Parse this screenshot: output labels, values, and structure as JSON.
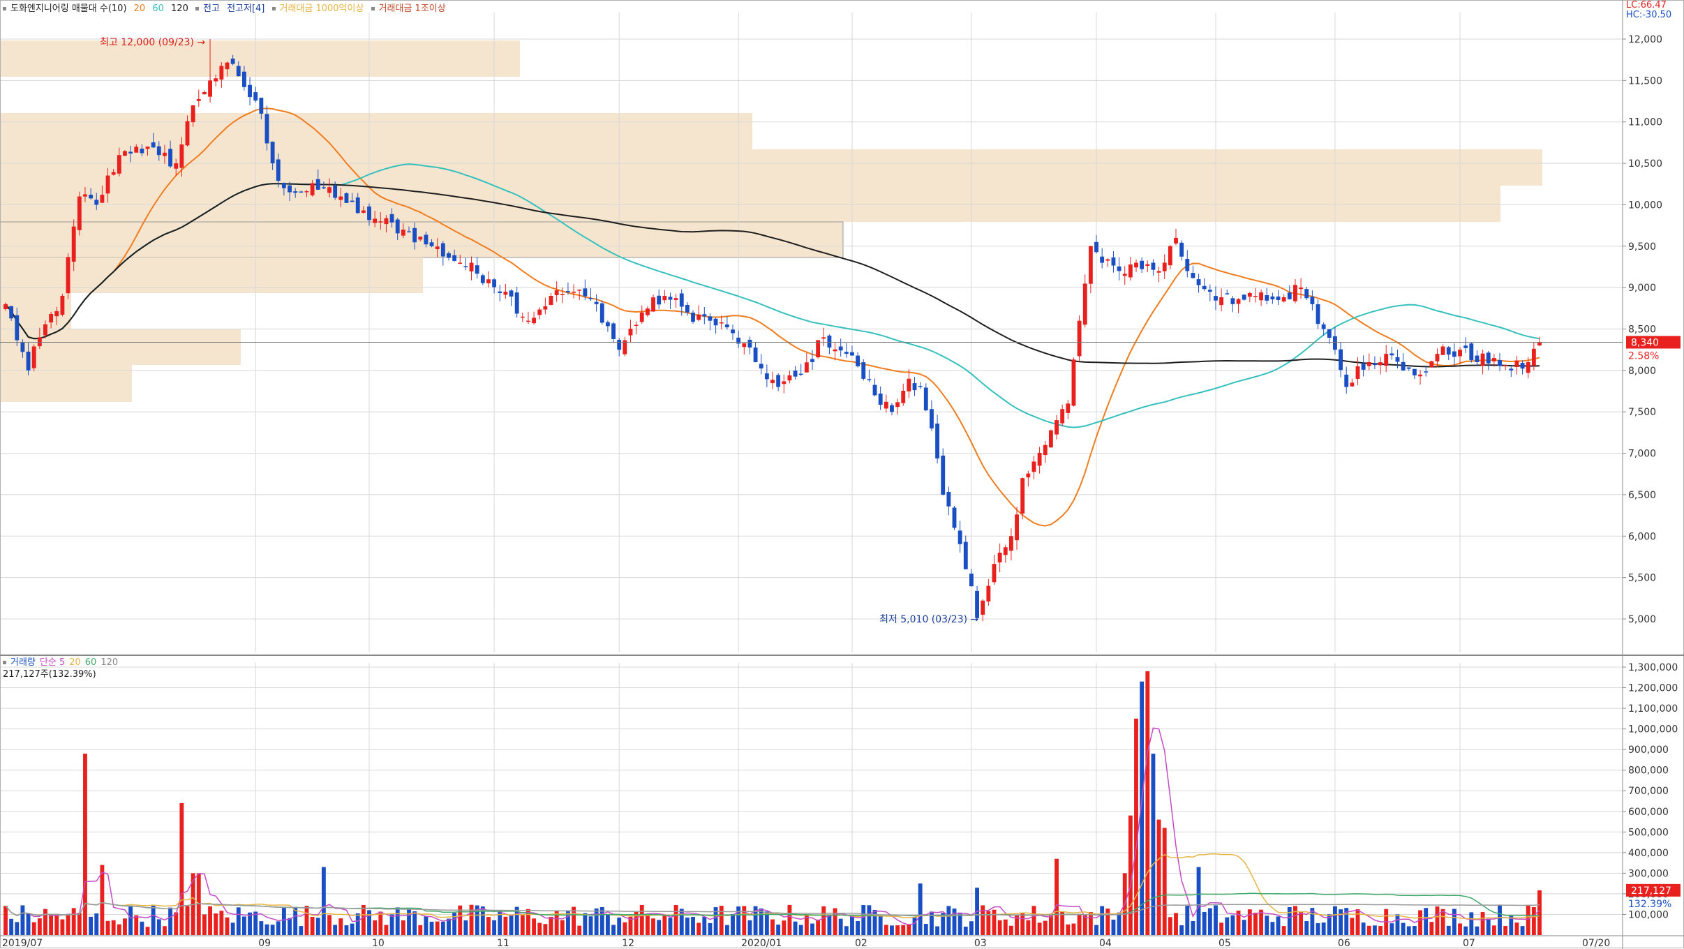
{
  "top_legend": {
    "title": "도화엔지니어링 매물대 수(10)",
    "ma20": "20",
    "ma60": "60",
    "ma120": "120",
    "item1": "전고",
    "item2": "전고저[4]",
    "item3": "거래대금 1000억이상",
    "item4": "거래대금 1조이상"
  },
  "top_right": {
    "lc": "LC:66.47",
    "hc": "HC:-30.50"
  },
  "volume_legend": {
    "title": "거래량",
    "simple": "단순 5",
    "ma20": "20",
    "ma60": "60",
    "ma120": "120",
    "value": "217,127주(132.39%)"
  },
  "colors": {
    "up": "#e8201e",
    "down": "#1a4fc4",
    "ma20": "#ef7d1f",
    "ma60": "#35c0bd",
    "ma120": "#1e1e1e",
    "vp": "#f5e5cf",
    "grid": "#d8d8d8",
    "vma5": "#c44bc4",
    "vma20": "#e6b544",
    "vma60": "#3fa86b",
    "vma120": "#9a9a9a"
  },
  "chart_data": {
    "type": "candlestick",
    "price_axis": {
      "min": 5000,
      "max": 12000,
      "ticks": [
        "12,000",
        "11,500",
        "11,000",
        "10,500",
        "10,000",
        "9,500",
        "9,000",
        "8,500",
        "8,000",
        "7,500",
        "7,000",
        "6,500",
        "6,000",
        "5,500",
        "5,000"
      ]
    },
    "volume_axis": {
      "min": 0,
      "max": 1300000,
      "ticks": [
        "1,300,000",
        "1,200,000",
        "1,100,000",
        "1,000,000",
        "900,000",
        "800,000",
        "700,000",
        "600,000",
        "500,000",
        "400,000",
        "300,000",
        "200,000",
        "100,000"
      ]
    },
    "x_labels": [
      {
        "i": 0,
        "label": "2019/07"
      },
      {
        "i": 44,
        "label": "09"
      },
      {
        "i": 64,
        "label": "10"
      },
      {
        "i": 86,
        "label": "11"
      },
      {
        "i": 108,
        "label": "12"
      },
      {
        "i": 129,
        "label": "2020/01"
      },
      {
        "i": 149,
        "label": "02"
      },
      {
        "i": 170,
        "label": "03"
      },
      {
        "i": 192,
        "label": "04"
      },
      {
        "i": 213,
        "label": "05"
      },
      {
        "i": 234,
        "label": "06"
      },
      {
        "i": 256,
        "label": "07"
      },
      {
        "i": 277,
        "label": "07/20"
      }
    ],
    "high_annotation": "최고 12,000 (09/23)",
    "low_annotation": "최저 5,010 (03/23)",
    "current_price": "8,340",
    "change_pct": "2.58%",
    "current_volume": "217,127",
    "volume_pct": "132.39%",
    "anchors": [
      [
        0,
        8800
      ],
      [
        4,
        8000
      ],
      [
        6,
        8400
      ],
      [
        10,
        8900
      ],
      [
        13,
        10100
      ],
      [
        16,
        10000
      ],
      [
        20,
        10600
      ],
      [
        23,
        10700
      ],
      [
        27,
        10600
      ],
      [
        30,
        10500
      ],
      [
        33,
        11200
      ],
      [
        36,
        11500
      ],
      [
        40,
        11700
      ],
      [
        43,
        11300
      ],
      [
        45,
        11100
      ],
      [
        47,
        10500
      ],
      [
        49,
        10200
      ],
      [
        52,
        10150
      ],
      [
        56,
        10200
      ],
      [
        59,
        10100
      ],
      [
        62,
        9900
      ],
      [
        66,
        9800
      ],
      [
        70,
        9700
      ],
      [
        75,
        9500
      ],
      [
        80,
        9300
      ],
      [
        85,
        9100
      ],
      [
        88,
        8950
      ],
      [
        92,
        8600
      ],
      [
        96,
        8900
      ],
      [
        100,
        8950
      ],
      [
        104,
        8800
      ],
      [
        108,
        8250
      ],
      [
        112,
        8700
      ],
      [
        116,
        8900
      ],
      [
        120,
        8700
      ],
      [
        124,
        8600
      ],
      [
        128,
        8450
      ],
      [
        132,
        8100
      ],
      [
        136,
        7800
      ],
      [
        140,
        7950
      ],
      [
        144,
        8400
      ],
      [
        148,
        8200
      ],
      [
        150,
        8050
      ],
      [
        153,
        7700
      ],
      [
        156,
        7500
      ],
      [
        159,
        7900
      ],
      [
        161,
        7800
      ],
      [
        163,
        7300
      ],
      [
        165,
        6500
      ],
      [
        167,
        6100
      ],
      [
        169,
        5600
      ],
      [
        171,
        5010
      ],
      [
        173,
        5400
      ],
      [
        175,
        5800
      ],
      [
        177,
        6000
      ],
      [
        179,
        6700
      ],
      [
        181,
        6900
      ],
      [
        183,
        7100
      ],
      [
        185,
        7400
      ],
      [
        187,
        7600
      ],
      [
        189,
        8600
      ],
      [
        191,
        9500
      ],
      [
        193,
        9300
      ],
      [
        196,
        9200
      ],
      [
        199,
        9300
      ],
      [
        203,
        9200
      ],
      [
        206,
        9600
      ],
      [
        208,
        9200
      ],
      [
        212,
        8950
      ],
      [
        216,
        8800
      ],
      [
        220,
        8900
      ],
      [
        224,
        8850
      ],
      [
        228,
        9000
      ],
      [
        230,
        8800
      ],
      [
        232,
        8500
      ],
      [
        234,
        8250
      ],
      [
        236,
        7800
      ],
      [
        238,
        8050
      ],
      [
        240,
        8100
      ],
      [
        243,
        8200
      ],
      [
        246,
        8000
      ],
      [
        249,
        7950
      ],
      [
        252,
        8200
      ],
      [
        256,
        8250
      ],
      [
        259,
        8100
      ],
      [
        262,
        8150
      ],
      [
        265,
        8000
      ],
      [
        268,
        8100
      ],
      [
        270,
        8340
      ]
    ],
    "vol_spikes": [
      [
        14,
        880000
      ],
      [
        31,
        640000
      ],
      [
        199,
        1050000
      ],
      [
        200,
        1230000
      ],
      [
        201,
        1280000
      ],
      [
        202,
        880000
      ],
      [
        198,
        580000
      ],
      [
        197,
        300000
      ],
      [
        203,
        560000
      ],
      [
        204,
        520000
      ],
      [
        185,
        370000
      ],
      [
        56,
        330000
      ],
      [
        17,
        340000
      ],
      [
        33,
        300000
      ],
      [
        34,
        300000
      ],
      [
        161,
        250000
      ],
      [
        171,
        230000
      ],
      [
        210,
        330000
      ]
    ]
  }
}
